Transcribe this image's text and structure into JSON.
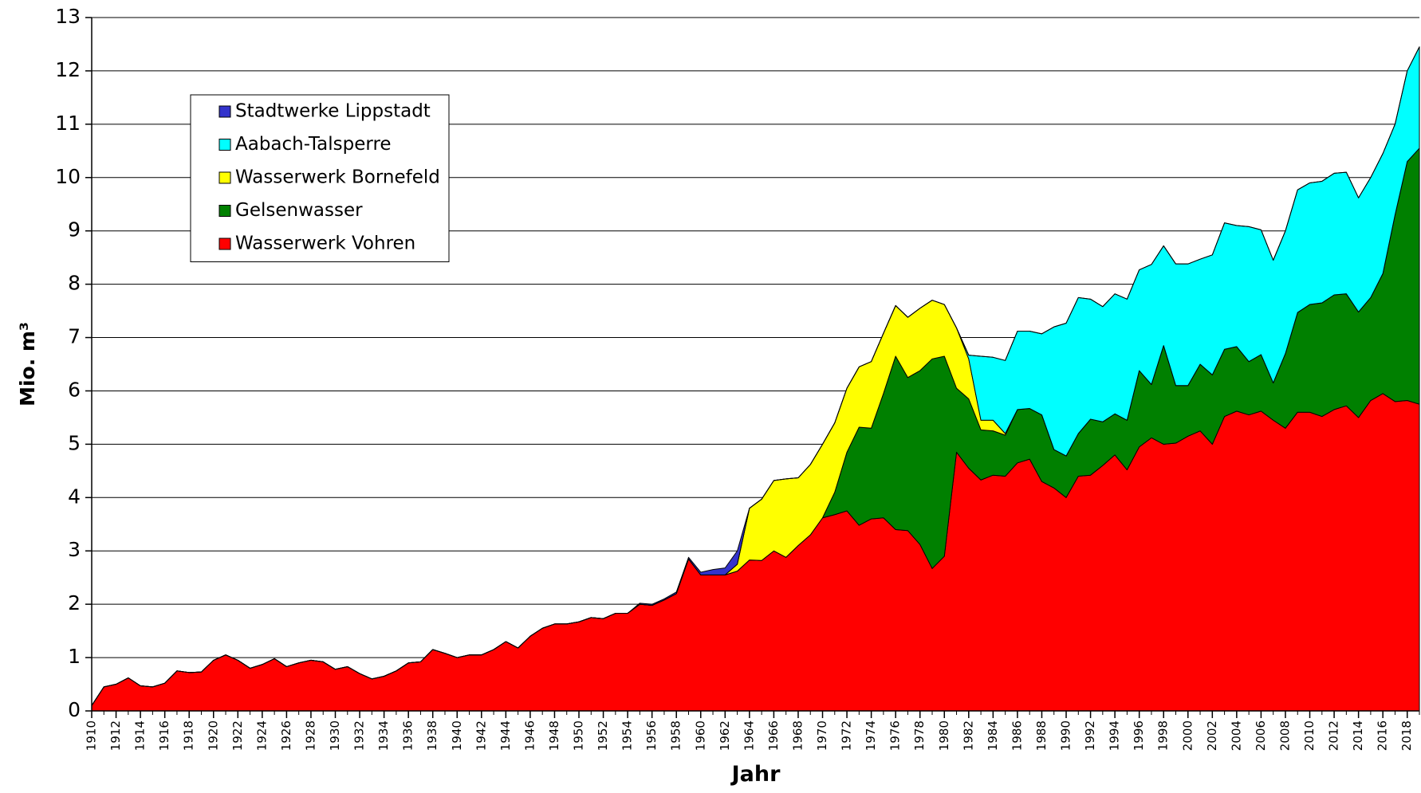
{
  "chart_data": {
    "type": "stacked_area",
    "x_label": "Jahr",
    "y_label": "Mio. m³",
    "x": [
      1910,
      1911,
      1912,
      1913,
      1914,
      1915,
      1916,
      1917,
      1918,
      1919,
      1920,
      1921,
      1922,
      1923,
      1924,
      1925,
      1926,
      1927,
      1928,
      1929,
      1930,
      1931,
      1932,
      1933,
      1934,
      1935,
      1936,
      1937,
      1938,
      1939,
      1940,
      1941,
      1942,
      1943,
      1944,
      1945,
      1946,
      1947,
      1948,
      1949,
      1950,
      1951,
      1952,
      1953,
      1954,
      1955,
      1956,
      1957,
      1958,
      1959,
      1960,
      1961,
      1962,
      1963,
      1964,
      1965,
      1966,
      1967,
      1968,
      1969,
      1970,
      1971,
      1972,
      1973,
      1974,
      1975,
      1976,
      1977,
      1978,
      1979,
      1980,
      1981,
      1982,
      1983,
      1984,
      1985,
      1986,
      1987,
      1988,
      1989,
      1990,
      1991,
      1992,
      1993,
      1994,
      1995,
      1996,
      1997,
      1998,
      1999,
      2000,
      2001,
      2002,
      2003,
      2004,
      2005,
      2006,
      2007,
      2008,
      2009,
      2010,
      2011,
      2012,
      2013,
      2014,
      2015,
      2016,
      2017,
      2018,
      2019
    ],
    "xlim": [
      1910,
      2019
    ],
    "xticks": [
      1910,
      1912,
      1914,
      1916,
      1918,
      1920,
      1922,
      1924,
      1926,
      1928,
      1930,
      1932,
      1934,
      1936,
      1938,
      1940,
      1942,
      1944,
      1946,
      1948,
      1950,
      1952,
      1954,
      1956,
      1958,
      1960,
      1962,
      1964,
      1966,
      1968,
      1970,
      1972,
      1974,
      1976,
      1978,
      1980,
      1982,
      1984,
      1986,
      1988,
      1990,
      1992,
      1994,
      1996,
      1998,
      2000,
      2002,
      2004,
      2006,
      2008,
      2010,
      2012,
      2014,
      2016,
      2018
    ],
    "ylim": [
      0,
      13
    ],
    "yticks": [
      0,
      1,
      2,
      3,
      4,
      5,
      6,
      7,
      8,
      9,
      10,
      11,
      12,
      13
    ],
    "grid": true,
    "legend": "upper left",
    "series": [
      {
        "name": "Stadtwerke Lippstadt",
        "color": "#3333cc",
        "values": [
          0,
          0,
          0,
          0,
          0,
          0,
          0,
          0,
          0,
          0,
          0,
          0,
          0,
          0,
          0,
          0,
          0,
          0,
          0,
          0,
          0,
          0,
          0,
          0,
          0,
          0,
          0,
          0,
          0,
          0,
          0,
          0,
          0,
          0,
          0,
          0,
          0,
          0,
          0,
          0,
          0,
          0,
          0,
          0,
          0,
          0.02,
          0.02,
          0.02,
          0.03,
          0.03,
          0.05,
          0.1,
          0.13,
          0.25,
          0,
          0,
          0,
          0,
          0,
          0,
          0,
          0,
          0,
          0,
          0,
          0,
          0,
          0,
          0,
          0,
          0,
          0,
          0,
          0,
          0,
          0,
          0,
          0,
          0,
          0,
          0,
          0,
          0,
          0,
          0,
          0,
          0,
          0,
          0,
          0,
          0,
          0,
          0,
          0,
          0,
          0,
          0,
          0,
          0,
          0,
          0,
          0,
          0,
          0,
          0,
          0,
          0,
          0,
          0,
          0
        ]
      },
      {
        "name": "Aabach-Talsperre",
        "color": "#00ffff",
        "values": [
          0,
          0,
          0,
          0,
          0,
          0,
          0,
          0,
          0,
          0,
          0,
          0,
          0,
          0,
          0,
          0,
          0,
          0,
          0,
          0,
          0,
          0,
          0,
          0,
          0,
          0,
          0,
          0,
          0,
          0,
          0,
          0,
          0,
          0,
          0,
          0,
          0,
          0,
          0,
          0,
          0,
          0,
          0,
          0,
          0,
          0,
          0,
          0,
          0,
          0,
          0,
          0,
          0,
          0,
          0,
          0,
          0,
          0,
          0,
          0,
          0,
          0,
          0,
          0,
          0,
          0,
          0,
          0,
          0,
          0,
          0,
          0,
          0.07,
          1.2,
          1.18,
          1.37,
          1.47,
          1.45,
          1.52,
          2.3,
          2.49,
          2.55,
          2.25,
          2.16,
          2.25,
          2.27,
          1.89,
          2.25,
          1.87,
          2.28,
          2.28,
          1.97,
          2.25,
          2.37,
          2.27,
          2.53,
          2.34,
          2.3,
          2.3,
          2.3,
          2.28,
          2.28,
          2.28,
          2.28,
          2.14,
          2.25,
          2.25,
          1.7,
          1.7,
          1.9
        ]
      },
      {
        "name": "Wasserwerk Bornefeld",
        "color": "#ffff00",
        "values": [
          0,
          0,
          0,
          0,
          0,
          0,
          0,
          0,
          0,
          0,
          0,
          0,
          0,
          0,
          0,
          0,
          0,
          0,
          0,
          0,
          0,
          0,
          0,
          0,
          0,
          0,
          0,
          0,
          0,
          0,
          0,
          0,
          0,
          0,
          0,
          0,
          0,
          0,
          0,
          0,
          0,
          0,
          0,
          0,
          0,
          0,
          0,
          0,
          0,
          0,
          0,
          0,
          0,
          0.13,
          0.97,
          1.15,
          1.32,
          1.47,
          1.27,
          1.32,
          1.38,
          1.3,
          1.2,
          1.13,
          1.25,
          1.13,
          0.95,
          1.13,
          1.17,
          1.1,
          0.97,
          1.13,
          0.75,
          0.18,
          0.2,
          0.03,
          0,
          0,
          0,
          0,
          0,
          0,
          0,
          0,
          0,
          0,
          0,
          0,
          0,
          0,
          0,
          0,
          0,
          0,
          0,
          0,
          0,
          0,
          0,
          0,
          0,
          0,
          0,
          0,
          0,
          0,
          0,
          0,
          0,
          0
        ]
      },
      {
        "name": "Gelsenwasser",
        "color": "#008000",
        "values": [
          0,
          0,
          0,
          0,
          0,
          0,
          0,
          0,
          0,
          0,
          0,
          0,
          0,
          0,
          0,
          0,
          0,
          0,
          0,
          0,
          0,
          0,
          0,
          0,
          0,
          0,
          0,
          0,
          0,
          0,
          0,
          0,
          0,
          0,
          0,
          0,
          0,
          0,
          0,
          0,
          0,
          0,
          0,
          0,
          0,
          0,
          0,
          0,
          0,
          0,
          0,
          0,
          0,
          0,
          0,
          0,
          0,
          0,
          0,
          0,
          0,
          0.42,
          1.1,
          1.84,
          1.7,
          2.33,
          3.25,
          2.87,
          3.26,
          3.93,
          3.75,
          1.2,
          1.3,
          0.94,
          0.83,
          0.77,
          1.0,
          0.95,
          1.25,
          0.72,
          0.78,
          0.8,
          1.05,
          0.82,
          0.77,
          0.93,
          1.43,
          1.0,
          1.85,
          1.08,
          0.95,
          1.25,
          1.3,
          1.26,
          1.21,
          1.0,
          1.06,
          0.7,
          1.4,
          1.87,
          2.02,
          2.13,
          2.15,
          2.1,
          1.98,
          1.93,
          2.25,
          3.5,
          4.48,
          4.8
        ]
      },
      {
        "name": "Wasserwerk Vohren",
        "color": "#ff0000",
        "values": [
          0.1,
          0.45,
          0.5,
          0.62,
          0.47,
          0.45,
          0.52,
          0.75,
          0.72,
          0.73,
          0.95,
          1.05,
          0.95,
          0.8,
          0.87,
          0.98,
          0.83,
          0.9,
          0.95,
          0.92,
          0.78,
          0.83,
          0.7,
          0.6,
          0.65,
          0.75,
          0.9,
          0.92,
          1.15,
          1.08,
          1.0,
          1.05,
          1.05,
          1.15,
          1.3,
          1.18,
          1.4,
          1.55,
          1.63,
          1.63,
          1.67,
          1.75,
          1.73,
          1.83,
          1.83,
          2.0,
          1.98,
          2.08,
          2.2,
          2.85,
          2.55,
          2.55,
          2.55,
          2.62,
          2.83,
          2.82,
          3.0,
          2.88,
          3.1,
          3.3,
          3.62,
          3.68,
          3.75,
          3.48,
          3.6,
          3.62,
          3.4,
          3.38,
          3.12,
          2.67,
          2.9,
          4.85,
          4.55,
          4.33,
          4.42,
          4.4,
          4.65,
          4.72,
          4.3,
          4.18,
          4.0,
          4.4,
          4.42,
          4.6,
          4.8,
          4.52,
          4.95,
          5.12,
          5.0,
          5.02,
          5.15,
          5.25,
          5.0,
          5.52,
          5.62,
          5.55,
          5.62,
          5.45,
          5.3,
          5.6,
          5.6,
          5.52,
          5.65,
          5.72,
          5.5,
          5.82,
          5.95,
          5.8,
          5.82,
          5.75
        ]
      }
    ]
  }
}
